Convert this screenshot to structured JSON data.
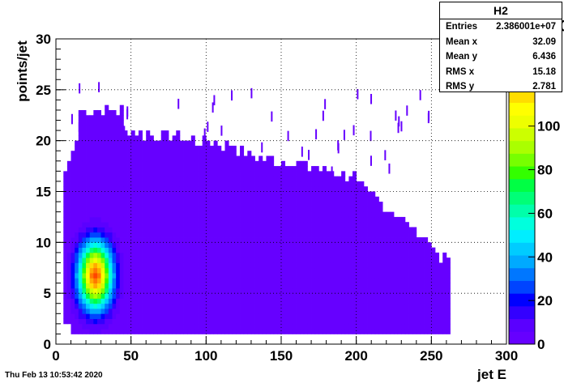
{
  "chart_data": {
    "type": "heatmap",
    "title": "",
    "xlabel": "jet E",
    "ylabel": "points/jet",
    "xlim": [
      0,
      300
    ],
    "ylim": [
      0,
      30
    ],
    "x_ticks": [
      0,
      50,
      100,
      150,
      200,
      250,
      300
    ],
    "y_ticks": [
      0,
      5,
      10,
      15,
      20,
      25,
      30
    ],
    "zlim": [
      0,
      140
    ],
    "z_ticks": [
      0,
      20,
      40,
      60,
      80,
      100
    ],
    "palette_exponent": "10",
    "palette_exponent_power": "3",
    "palette_colors": [
      "#6600ff",
      "#5a00ff",
      "#3300ff",
      "#0000ff",
      "#0044ff",
      "#0077ff",
      "#00aaff",
      "#00ccff",
      "#00eeff",
      "#00ffdd",
      "#00ffaa",
      "#00ff77",
      "#00ff44",
      "#33ff00",
      "#77ff00",
      "#aaff00",
      "#ccff00",
      "#eeff00",
      "#ffff00",
      "#ffdd00",
      "#ffaa00",
      "#ff7700",
      "#ff4400",
      "#ff0000"
    ],
    "grid": true,
    "hotspot": {
      "x": 25,
      "y": 6.5,
      "peak": 130
    },
    "bins_x": [
      [
        5,
        260
      ]
    ],
    "series": [],
    "stats": {
      "name": "H2",
      "rows": [
        {
          "label": "Entries",
          "value": "2.386001e+07"
        },
        {
          "label": "Mean x",
          "value": "32.09"
        },
        {
          "label": "Mean y",
          "value": "6.436"
        },
        {
          "label": "RMS x",
          "value": "15.18"
        },
        {
          "label": "RMS y",
          "value": "2.781"
        }
      ]
    }
  },
  "datestamp": "Thu Feb 13 10:53:42 2020"
}
